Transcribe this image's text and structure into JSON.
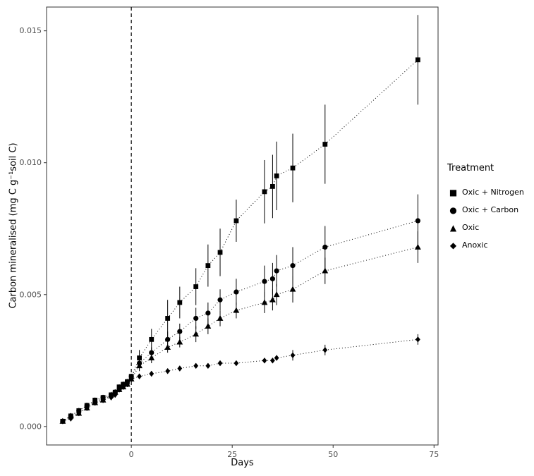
{
  "chart_data": {
    "type": "scatter",
    "xlabel": "Days",
    "ylabel": "Carbon mineralised (mg C g⁻¹soil C)",
    "xlim": [
      -21,
      76
    ],
    "ylim": [
      -0.0007,
      0.0159
    ],
    "grid": false,
    "vline_x": 0,
    "vline_style": "dashed",
    "x_ticks": {
      "values": [
        0,
        25,
        50,
        75
      ],
      "labels": [
        "0",
        "25",
        "50",
        "75"
      ]
    },
    "y_ticks": {
      "values": [
        0,
        0.005,
        0.01,
        0.015
      ],
      "labels": [
        "0.000",
        "0.005",
        "0.010",
        "0.015"
      ]
    },
    "legend_title": "Treatment",
    "legend_position": "right",
    "point_color": "#000000",
    "line_style": "dotted",
    "series": [
      {
        "name": "Oxic + Nitrogen",
        "marker": "square",
        "glyph": "■",
        "x": [
          -17,
          -15,
          -13,
          -11,
          -9,
          -7,
          -5,
          -4,
          -3,
          -2,
          -1,
          0,
          2,
          5,
          9,
          12,
          16,
          19,
          22,
          26,
          33,
          35,
          36,
          40,
          48,
          71
        ],
        "y": [
          0.0002,
          0.0004,
          0.0006,
          0.0008,
          0.001,
          0.0011,
          0.0012,
          0.0013,
          0.0015,
          0.0016,
          0.0017,
          0.0019,
          0.0026,
          0.0033,
          0.0041,
          0.0047,
          0.0053,
          0.0061,
          0.0066,
          0.0078,
          0.0089,
          0.0091,
          0.0095,
          0.0098,
          0.0107,
          0.0139
        ],
        "err": [
          0.0001,
          0.0001,
          0.0001,
          0.0001,
          0.0001,
          0.0001,
          0.0001,
          0.0001,
          0.0001,
          0.0001,
          0.0001,
          0.0001,
          0.0003,
          0.0004,
          0.0007,
          0.0006,
          0.0007,
          0.0008,
          0.0009,
          0.0008,
          0.0012,
          0.0012,
          0.0013,
          0.0013,
          0.0015,
          0.0017
        ]
      },
      {
        "name": "Oxic + Carbon",
        "marker": "circle",
        "glyph": "●",
        "x": [
          -17,
          -15,
          -13,
          -11,
          -9,
          -7,
          -5,
          -4,
          -3,
          -2,
          -1,
          0,
          2,
          5,
          9,
          12,
          16,
          19,
          22,
          26,
          33,
          35,
          36,
          40,
          48,
          71
        ],
        "y": [
          0.0002,
          0.0004,
          0.0006,
          0.0008,
          0.0009,
          0.0011,
          0.0012,
          0.0013,
          0.0014,
          0.0016,
          0.0017,
          0.0019,
          0.0024,
          0.0028,
          0.0033,
          0.0036,
          0.0041,
          0.0043,
          0.0048,
          0.0051,
          0.0055,
          0.0056,
          0.0059,
          0.0061,
          0.0068,
          0.0078
        ],
        "err": [
          0.0001,
          0.0001,
          0.0001,
          0.0001,
          0.0001,
          0.0001,
          0.0001,
          0.0001,
          0.0001,
          0.0001,
          0.0001,
          0.0001,
          0.0002,
          0.0002,
          0.0003,
          0.0003,
          0.0004,
          0.0004,
          0.0004,
          0.0005,
          0.0006,
          0.0006,
          0.0006,
          0.0007,
          0.0008,
          0.001
        ]
      },
      {
        "name": "Oxic",
        "marker": "triangle",
        "glyph": "▲",
        "x": [
          -17,
          -15,
          -13,
          -11,
          -9,
          -7,
          -5,
          -4,
          -3,
          -2,
          -1,
          0,
          2,
          5,
          9,
          12,
          16,
          19,
          22,
          26,
          33,
          35,
          36,
          40,
          48,
          71
        ],
        "y": [
          0.0002,
          0.0004,
          0.0005,
          0.0007,
          0.0009,
          0.001,
          0.0012,
          0.0013,
          0.0014,
          0.0015,
          0.0016,
          0.0018,
          0.0023,
          0.0026,
          0.003,
          0.0032,
          0.0035,
          0.0038,
          0.0041,
          0.0044,
          0.0047,
          0.0048,
          0.005,
          0.0052,
          0.0059,
          0.0068
        ],
        "err": [
          0.0001,
          0.0001,
          0.0001,
          0.0001,
          0.0001,
          0.0001,
          0.0001,
          0.0001,
          0.0001,
          0.0001,
          0.0001,
          0.0001,
          0.0002,
          0.0002,
          0.0002,
          0.0002,
          0.0003,
          0.0003,
          0.0003,
          0.0003,
          0.0004,
          0.0004,
          0.0004,
          0.0005,
          0.0005,
          0.0006
        ]
      },
      {
        "name": "Anoxic",
        "marker": "diamond",
        "glyph": "◆",
        "x": [
          -17,
          -15,
          -13,
          -11,
          -9,
          -7,
          -5,
          -4,
          -3,
          -2,
          -1,
          0,
          2,
          5,
          9,
          12,
          16,
          19,
          22,
          26,
          33,
          35,
          36,
          40,
          48,
          71
        ],
        "y": [
          0.0002,
          0.0003,
          0.0005,
          0.0007,
          0.0009,
          0.001,
          0.0011,
          0.0012,
          0.0014,
          0.0015,
          0.0016,
          0.0018,
          0.0019,
          0.002,
          0.0021,
          0.0022,
          0.0023,
          0.0023,
          0.0024,
          0.0024,
          0.0025,
          0.0025,
          0.0026,
          0.0027,
          0.0029,
          0.0033
        ],
        "err": [
          0.0001,
          0.0001,
          0.0001,
          0.0001,
          0.0001,
          0.0001,
          0.0001,
          0.0001,
          0.0001,
          0.0001,
          0.0001,
          0.0001,
          0.0001,
          0.0001,
          0.0001,
          0.0001,
          0.0001,
          0.0001,
          0.0001,
          0.0001,
          0.0001,
          0.0001,
          0.0001,
          0.0002,
          0.0002,
          0.0002
        ]
      }
    ]
  }
}
